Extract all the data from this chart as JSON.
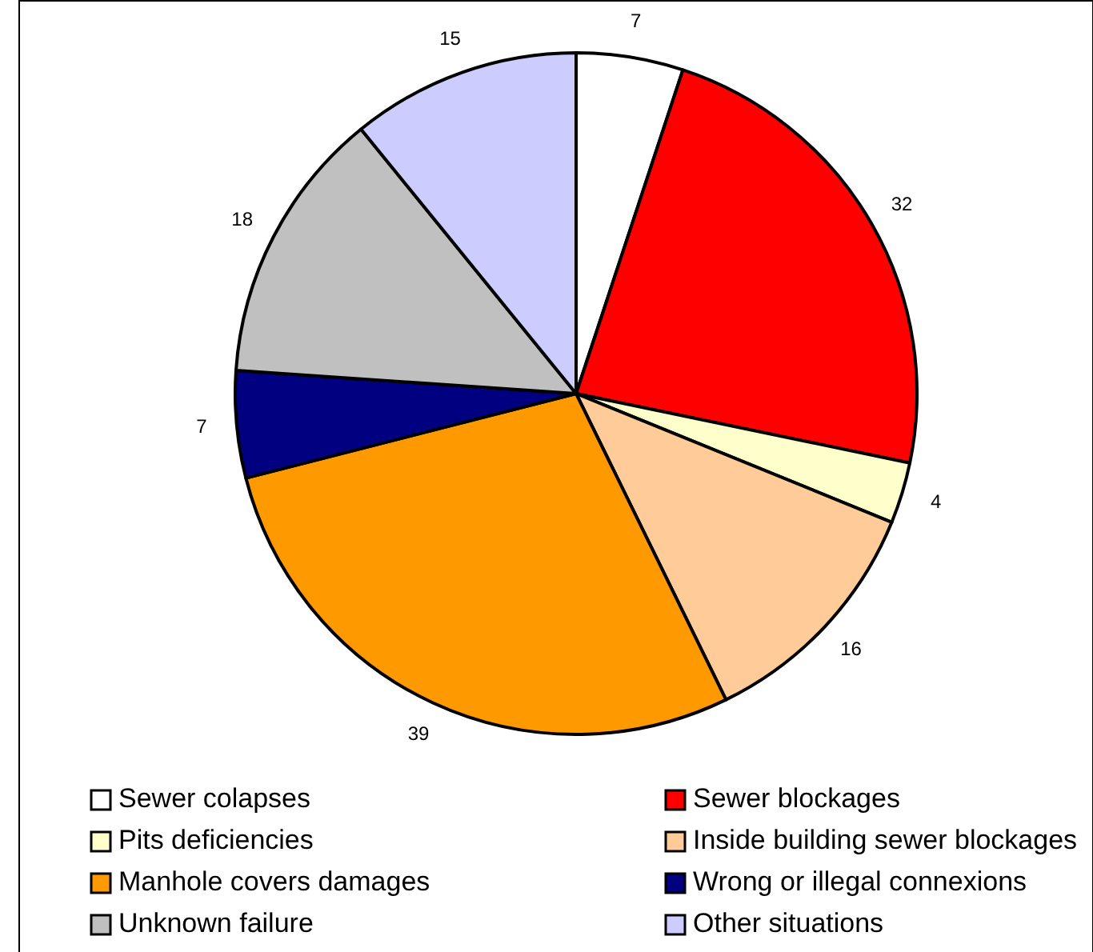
{
  "chart_data": {
    "type": "pie",
    "categories": [
      "Sewer colapses",
      "Sewer blockages",
      "Pits deficiencies",
      "Inside building sewer blockages",
      "Manhole covers damages",
      "Wrong or illegal connexions",
      "Unknown failure",
      "Other situations"
    ],
    "values": [
      7,
      32,
      4,
      16,
      39,
      7,
      18,
      15
    ],
    "colors": [
      "#ffffff",
      "#ff0000",
      "#ffffcc",
      "#ffcc99",
      "#ff9900",
      "#000080",
      "#c0c0c0",
      "#ccccff"
    ],
    "data_labels": true,
    "legend": "bottom"
  }
}
